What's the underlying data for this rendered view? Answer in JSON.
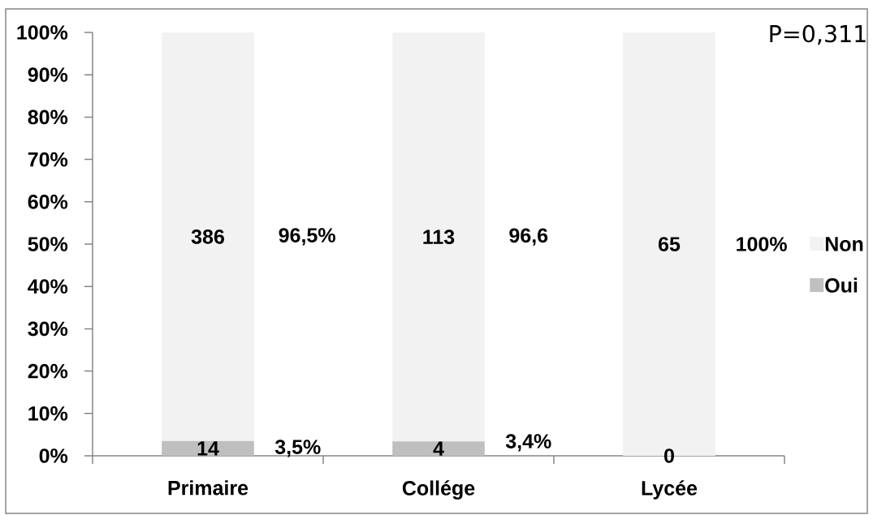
{
  "chart_data": {
    "type": "bar",
    "stacked": true,
    "categories": [
      "Primaire",
      "Collége",
      "Lycée"
    ],
    "series": [
      {
        "name": "Oui",
        "color": "#bfbfbf",
        "values": [
          3.5,
          3.4,
          0
        ]
      },
      {
        "name": "Non",
        "color": "#f2f2f2",
        "values": [
          96.5,
          96.6,
          100
        ]
      }
    ],
    "ylim": [
      0,
      100
    ],
    "yticks": [
      {
        "value": 0,
        "label": "0%"
      },
      {
        "value": 10,
        "label": "10%"
      },
      {
        "value": 20,
        "label": "20%"
      },
      {
        "value": 30,
        "label": "30%"
      },
      {
        "value": 40,
        "label": "40%"
      },
      {
        "value": 50,
        "label": "50%"
      },
      {
        "value": 60,
        "label": "60%"
      },
      {
        "value": 70,
        "label": "70%"
      },
      {
        "value": 80,
        "label": "80%"
      },
      {
        "value": 90,
        "label": "90%"
      },
      {
        "value": 100,
        "label": "100%"
      }
    ],
    "legend": "right",
    "annotations": [
      "P=0,311",
      "386",
      "96,5%",
      "113",
      "96,6",
      "65",
      "100%",
      "14",
      "3,5%",
      "4",
      "3,4%",
      "0"
    ]
  }
}
